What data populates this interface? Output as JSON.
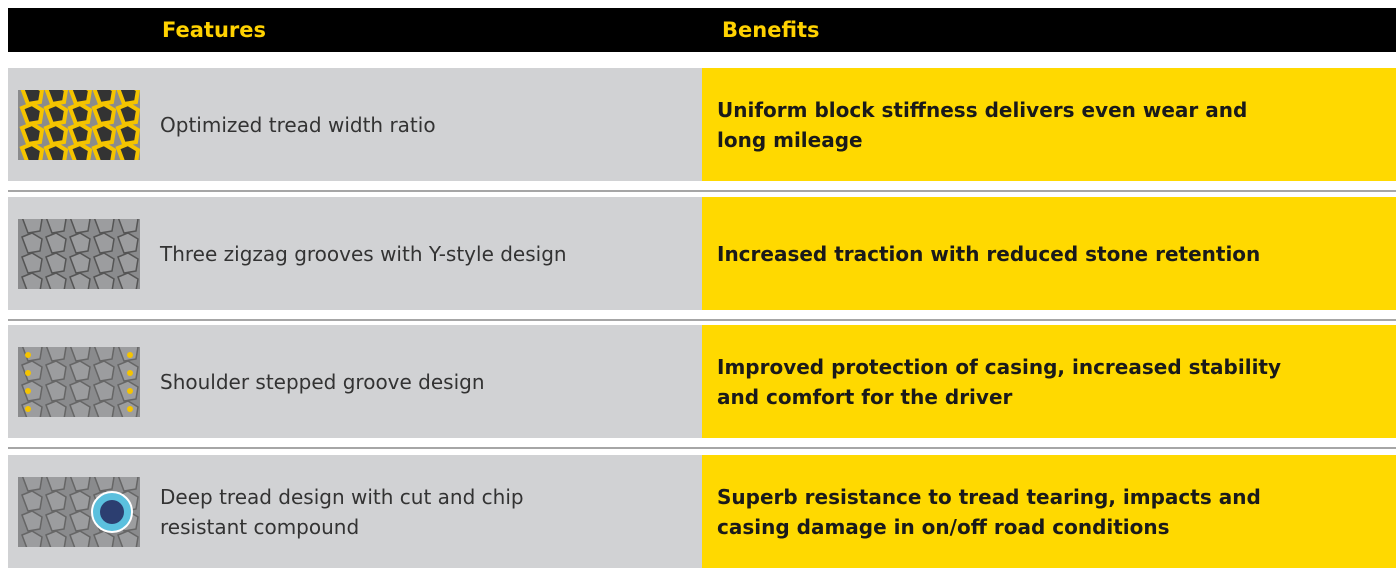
{
  "header": {
    "features": "Features",
    "benefits": "Benefits"
  },
  "rows": [
    {
      "feature": "Optimized tread width ratio",
      "benefit": "Uniform block stiffness delivers even wear and long mileage"
    },
    {
      "feature": "Three zigzag grooves with Y-style design",
      "benefit": "Increased traction with reduced stone retention"
    },
    {
      "feature": "Shoulder stepped groove design",
      "benefit": "Improved protection of casing, increased stability and comfort for the driver"
    },
    {
      "feature": "Deep tread design with cut and chip resistant compound",
      "benefit": "Superb resistance to tread tearing, impacts and casing damage in on/off road conditions"
    }
  ]
}
